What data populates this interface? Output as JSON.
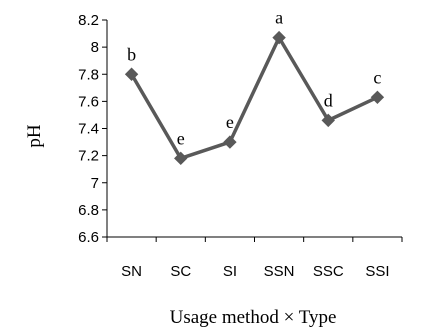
{
  "chart_data": {
    "type": "line",
    "categories": [
      "SN",
      "SC",
      "SI",
      "SSN",
      "SSC",
      "SSI"
    ],
    "series": [
      {
        "values": [
          7.8,
          7.18,
          7.3,
          8.07,
          7.46,
          7.63
        ],
        "labels": [
          "b",
          "e",
          "e",
          "a",
          "d",
          "c"
        ],
        "color": "#595959",
        "marker": "diamond"
      }
    ],
    "yticks": [
      "6.6",
      "6.8",
      "7",
      "7.2",
      "7.4",
      "7.6",
      "7.8",
      "8",
      "8.2"
    ],
    "ylim": [
      6.6,
      8.2
    ],
    "xlabel": "Usage method × Type",
    "ylabel": "pH",
    "grid": false
  }
}
